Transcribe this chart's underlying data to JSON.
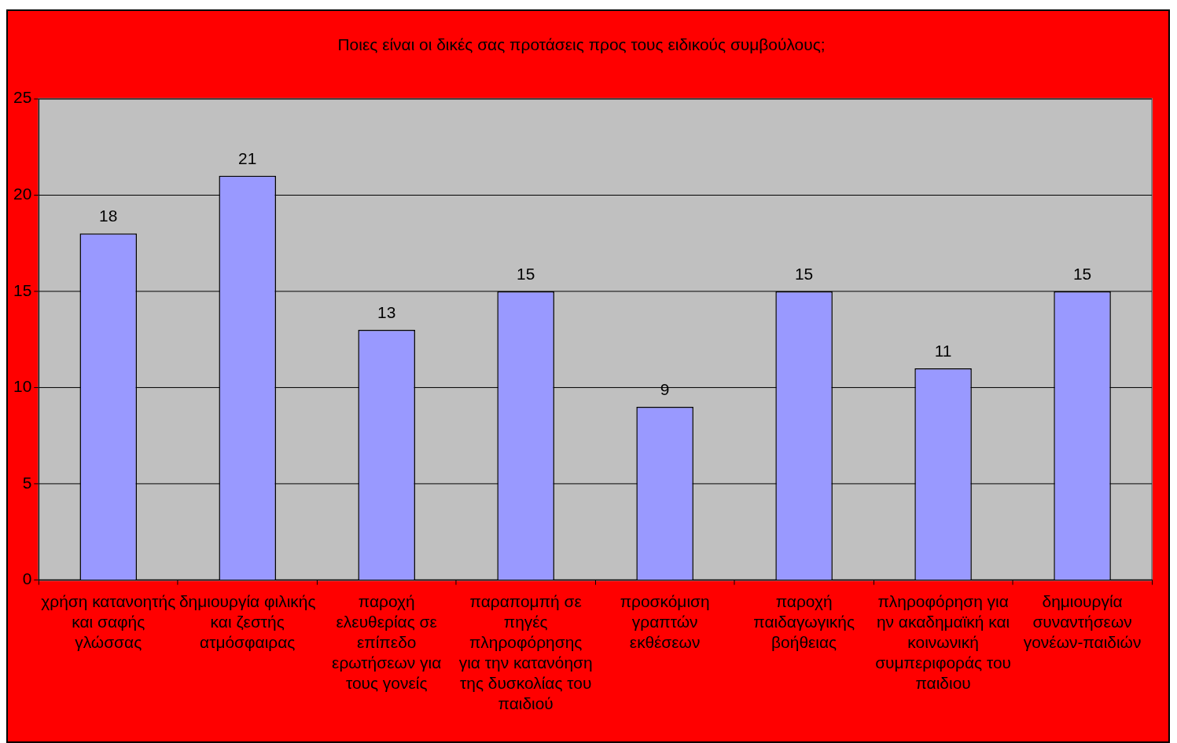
{
  "chart_data": {
    "type": "bar",
    "title": "Ποιες είναι οι δικές σας προτάσεις προς τους ειδικούς συμβούλους;",
    "categories": [
      "χρήση κατανοητής\nκαι σαφής\nγλώσσας",
      "δημιουργία φιλικής\nκαι ζεστής\nατμόσφαιρας",
      "παροχή\nελευθερίας σε\nεπίπεδο\nερωτήσεων για\nτους γονείς",
      "παραπομπή σε\nπηγές\nπληροφόρησης\nγια την κατανόηση\nτης δυσκολίας του\nπαιδιού",
      "προσκόμιση\nγραπτών\nεκθέσεων",
      "παροχή\nπαιδαγωγικής\nβοήθειας",
      "πληροφόρηση για\nην ακαδημαϊκή και\nκοινωνική\nσυμπεριφοράς του\nπαιδιου",
      "δημιουργία\nσυναντήσεων\nγονέων-παιδιών"
    ],
    "values": [
      18,
      21,
      13,
      15,
      9,
      15,
      11,
      15
    ],
    "color": "#9999ff",
    "ylim": [
      0,
      25
    ],
    "yticks": [
      0,
      5,
      10,
      15,
      20,
      25
    ],
    "grid": "y",
    "data_labels": true
  }
}
